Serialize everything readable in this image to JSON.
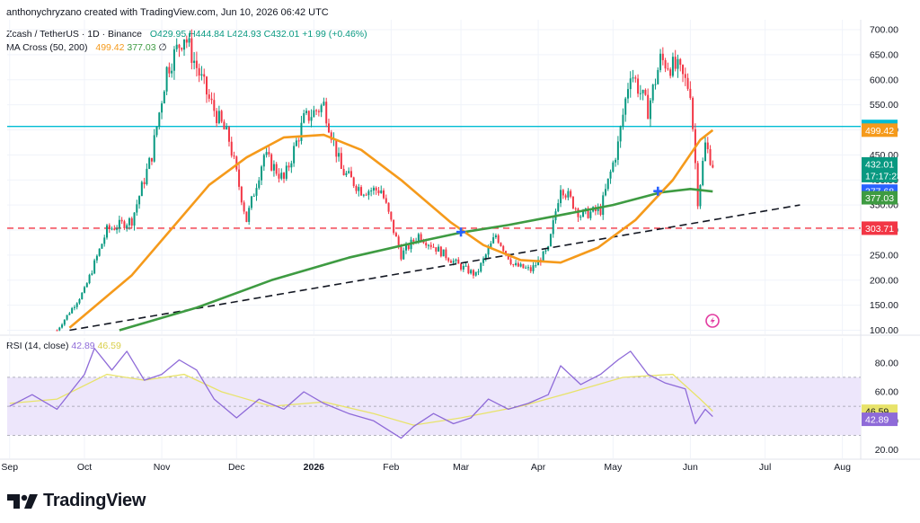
{
  "header": {
    "text": "anthonychryzano created with TradingView.com, Jun 10, 2026 06:42 UTC"
  },
  "legend": {
    "symbol": "Zcash / TetherUS · 1D · Binance",
    "open": "O429.95",
    "high": "H444.84",
    "low": "L424.93",
    "close": "C432.01",
    "change": "+1.99 (+0.46%)",
    "ma_label": "MA Cross (50, 200)",
    "ma_fast": "499.42",
    "ma_slow": "377.03",
    "ma_suffix": "∅",
    "rsi_label": "RSI (14, close)",
    "rsi_value": "42.89",
    "rsi_ma": "46.59"
  },
  "brand": {
    "name": "TradingView",
    "logo_icon": "tradingview-logo-icon"
  },
  "colors": {
    "up": "#089981",
    "down": "#f23645",
    "ma_fast": "#f59a1b",
    "ma_slow": "#3e9b42",
    "cyan": "#00bcd4",
    "rsi": "#8e6ad8",
    "rsi_ma": "#e8e36a",
    "rsi_band": "#ede6fb"
  },
  "chart_data": [
    {
      "type": "candlestick",
      "symbol": "Zcash / TetherUS",
      "timeframe": "1D",
      "x_ticks": [
        "Sep",
        "Oct",
        "Nov",
        "Dec",
        "2026",
        "Feb",
        "Mar",
        "Apr",
        "May",
        "Jun",
        "Jul",
        "Aug"
      ],
      "y_ticks": [
        100,
        150,
        200,
        250,
        300,
        350,
        400,
        450,
        500,
        550,
        600,
        650,
        700
      ],
      "y_tick_labels": [
        "100.00",
        "150.00",
        "200.00",
        "250.00",
        "300.00",
        "350.00",
        "400.00",
        "450.00",
        "500.00",
        "550.00",
        "600.00",
        "650.00",
        "700.00"
      ],
      "ylim": [
        100,
        700
      ],
      "price_path": [
        [
          "Sep 20",
          100
        ],
        [
          "Oct 1",
          180
        ],
        [
          "Oct 10",
          300
        ],
        [
          "Oct 20",
          320
        ],
        [
          "Oct 28",
          450
        ],
        [
          "Nov 3",
          620
        ],
        [
          "Nov 10",
          690
        ],
        [
          "Nov 20",
          560
        ],
        [
          "Nov 28",
          480
        ],
        [
          "Dec 5",
          320
        ],
        [
          "Dec 12",
          450
        ],
        [
          "Dec 20",
          400
        ],
        [
          "Dec 28",
          520
        ],
        [
          "Jan 5",
          550
        ],
        [
          "Jan 12",
          420
        ],
        [
          "Jan 20",
          380
        ],
        [
          "Jan 28",
          380
        ],
        [
          "Feb 5",
          250
        ],
        [
          "Feb 12",
          290
        ],
        [
          "Feb 20",
          260
        ],
        [
          "Feb 28",
          230
        ],
        [
          "Mar 7",
          210
        ],
        [
          "Mar 15",
          290
        ],
        [
          "Mar 22",
          230
        ],
        [
          "Mar 29",
          220
        ],
        [
          "Apr 5",
          260
        ],
        [
          "Apr 10",
          390
        ],
        [
          "Apr 18",
          330
        ],
        [
          "Apr 26",
          340
        ],
        [
          "May 3",
          470
        ],
        [
          "May 8",
          620
        ],
        [
          "May 15",
          540
        ],
        [
          "May 20",
          640
        ],
        [
          "May 27",
          620
        ],
        [
          "Jun 1",
          580
        ],
        [
          "Jun 4",
          360
        ],
        [
          "Jun 7",
          470
        ],
        [
          "Jun 10",
          432
        ]
      ],
      "ma_fast": {
        "name": "MA Cross (50, 200)",
        "points": [
          [
            "Sep 25",
            105
          ],
          [
            "Oct 20",
            210
          ],
          [
            "Nov 20",
            390
          ],
          [
            "Dec 5",
            445
          ],
          [
            "Dec 20",
            485
          ],
          [
            "Jan 5",
            490
          ],
          [
            "Jan 20",
            460
          ],
          [
            "Feb 5",
            400
          ],
          [
            "Feb 25",
            315
          ],
          [
            "Mar 10",
            270
          ],
          [
            "Mar 25",
            240
          ],
          [
            "Apr 10",
            235
          ],
          [
            "Apr 25",
            265
          ],
          [
            "May 10",
            320
          ],
          [
            "May 25",
            400
          ],
          [
            "Jun 5",
            480
          ],
          [
            "Jun 10",
            499.42
          ]
        ]
      },
      "ma_slow": {
        "name": "MA Cross (50, 200)",
        "points": [
          [
            "Oct 15",
            100
          ],
          [
            "Nov 15",
            145
          ],
          [
            "Dec 15",
            200
          ],
          [
            "Jan 15",
            245
          ],
          [
            "Feb 15",
            280
          ],
          [
            "Mar 1",
            295
          ],
          [
            "Mar 20",
            310
          ],
          [
            "Apr 10",
            330
          ],
          [
            "May 1",
            350
          ],
          [
            "May 20",
            375
          ],
          [
            "Jun 1",
            382
          ],
          [
            "Jun 10",
            377.03
          ]
        ]
      },
      "crosses": [
        [
          "Mar 1",
          296
        ],
        [
          "May 19",
          377.68
        ]
      ],
      "trendline": [
        [
          "Sep 25",
          100
        ],
        [
          "Jul 15",
          350
        ]
      ],
      "horizontal_lines": [
        {
          "value": 506.8,
          "color": "#00bcd4",
          "style": "solid"
        },
        {
          "value": 303.71,
          "color": "#f23645",
          "style": "dashed"
        }
      ],
      "price_labels": [
        {
          "text": "506.80",
          "color": "#00bcd4"
        },
        {
          "text": "499.42",
          "color": "#f59a1b"
        },
        {
          "text": "432.01",
          "color": "#089981"
        },
        {
          "text": "17:17:23",
          "color": "#089981"
        },
        {
          "text": "377.68",
          "color": "#2962ff"
        },
        {
          "text": "377.03",
          "color": "#3e9b42"
        },
        {
          "text": "303.71",
          "color": "#f23645"
        }
      ]
    },
    {
      "type": "line",
      "name": "RSI (14, close)",
      "y_ticks": [
        20,
        40,
        60,
        80
      ],
      "y_tick_labels": [
        "20.00",
        "40.00",
        "60.00",
        "80.00"
      ],
      "band": [
        30,
        70
      ],
      "ylim": [
        15,
        95
      ],
      "rsi_path": [
        [
          "Sep 1",
          50
        ],
        [
          "Sep 10",
          58
        ],
        [
          "Sep 20",
          48
        ],
        [
          "Oct 1",
          72
        ],
        [
          "Oct 5",
          90
        ],
        [
          "Oct 12",
          75
        ],
        [
          "Oct 18",
          88
        ],
        [
          "Oct 25",
          68
        ],
        [
          "Nov 1",
          72
        ],
        [
          "Nov 8",
          82
        ],
        [
          "Nov 15",
          75
        ],
        [
          "Nov 22",
          55
        ],
        [
          "Dec 1",
          42
        ],
        [
          "Dec 10",
          55
        ],
        [
          "Dec 20",
          48
        ],
        [
          "Dec 28",
          60
        ],
        [
          "Jan 5",
          52
        ],
        [
          "Jan 15",
          45
        ],
        [
          "Jan 25",
          40
        ],
        [
          "Feb 5",
          28
        ],
        [
          "Feb 10",
          36
        ],
        [
          "Feb 18",
          45
        ],
        [
          "Feb 26",
          38
        ],
        [
          "Mar 5",
          42
        ],
        [
          "Mar 12",
          55
        ],
        [
          "Mar 20",
          48
        ],
        [
          "Mar 28",
          52
        ],
        [
          "Apr 5",
          58
        ],
        [
          "Apr 10",
          78
        ],
        [
          "Apr 18",
          65
        ],
        [
          "Apr 26",
          72
        ],
        [
          "May 3",
          82
        ],
        [
          "May 8",
          88
        ],
        [
          "May 15",
          72
        ],
        [
          "May 22",
          66
        ],
        [
          "May 30",
          62
        ],
        [
          "Jun 3",
          38
        ],
        [
          "Jun 7",
          48
        ],
        [
          "Jun 10",
          42.89
        ]
      ],
      "rsi_ma_path": [
        [
          "Sep 1",
          52
        ],
        [
          "Sep 20",
          55
        ],
        [
          "Oct 10",
          72
        ],
        [
          "Oct 25",
          68
        ],
        [
          "Nov 10",
          72
        ],
        [
          "Nov 25",
          60
        ],
        [
          "Dec 15",
          50
        ],
        [
          "Jan 5",
          53
        ],
        [
          "Jan 25",
          45
        ],
        [
          "Feb 10",
          37
        ],
        [
          "Mar 1",
          42
        ],
        [
          "Mar 25",
          50
        ],
        [
          "Apr 15",
          60
        ],
        [
          "May 5",
          70
        ],
        [
          "May 25",
          72
        ],
        [
          "Jun 5",
          55
        ],
        [
          "Jun 10",
          46.59
        ]
      ],
      "value_labels": [
        {
          "text": "46.59",
          "color": "#e8e36a"
        },
        {
          "text": "42.89",
          "color": "#8e6ad8"
        }
      ]
    }
  ]
}
